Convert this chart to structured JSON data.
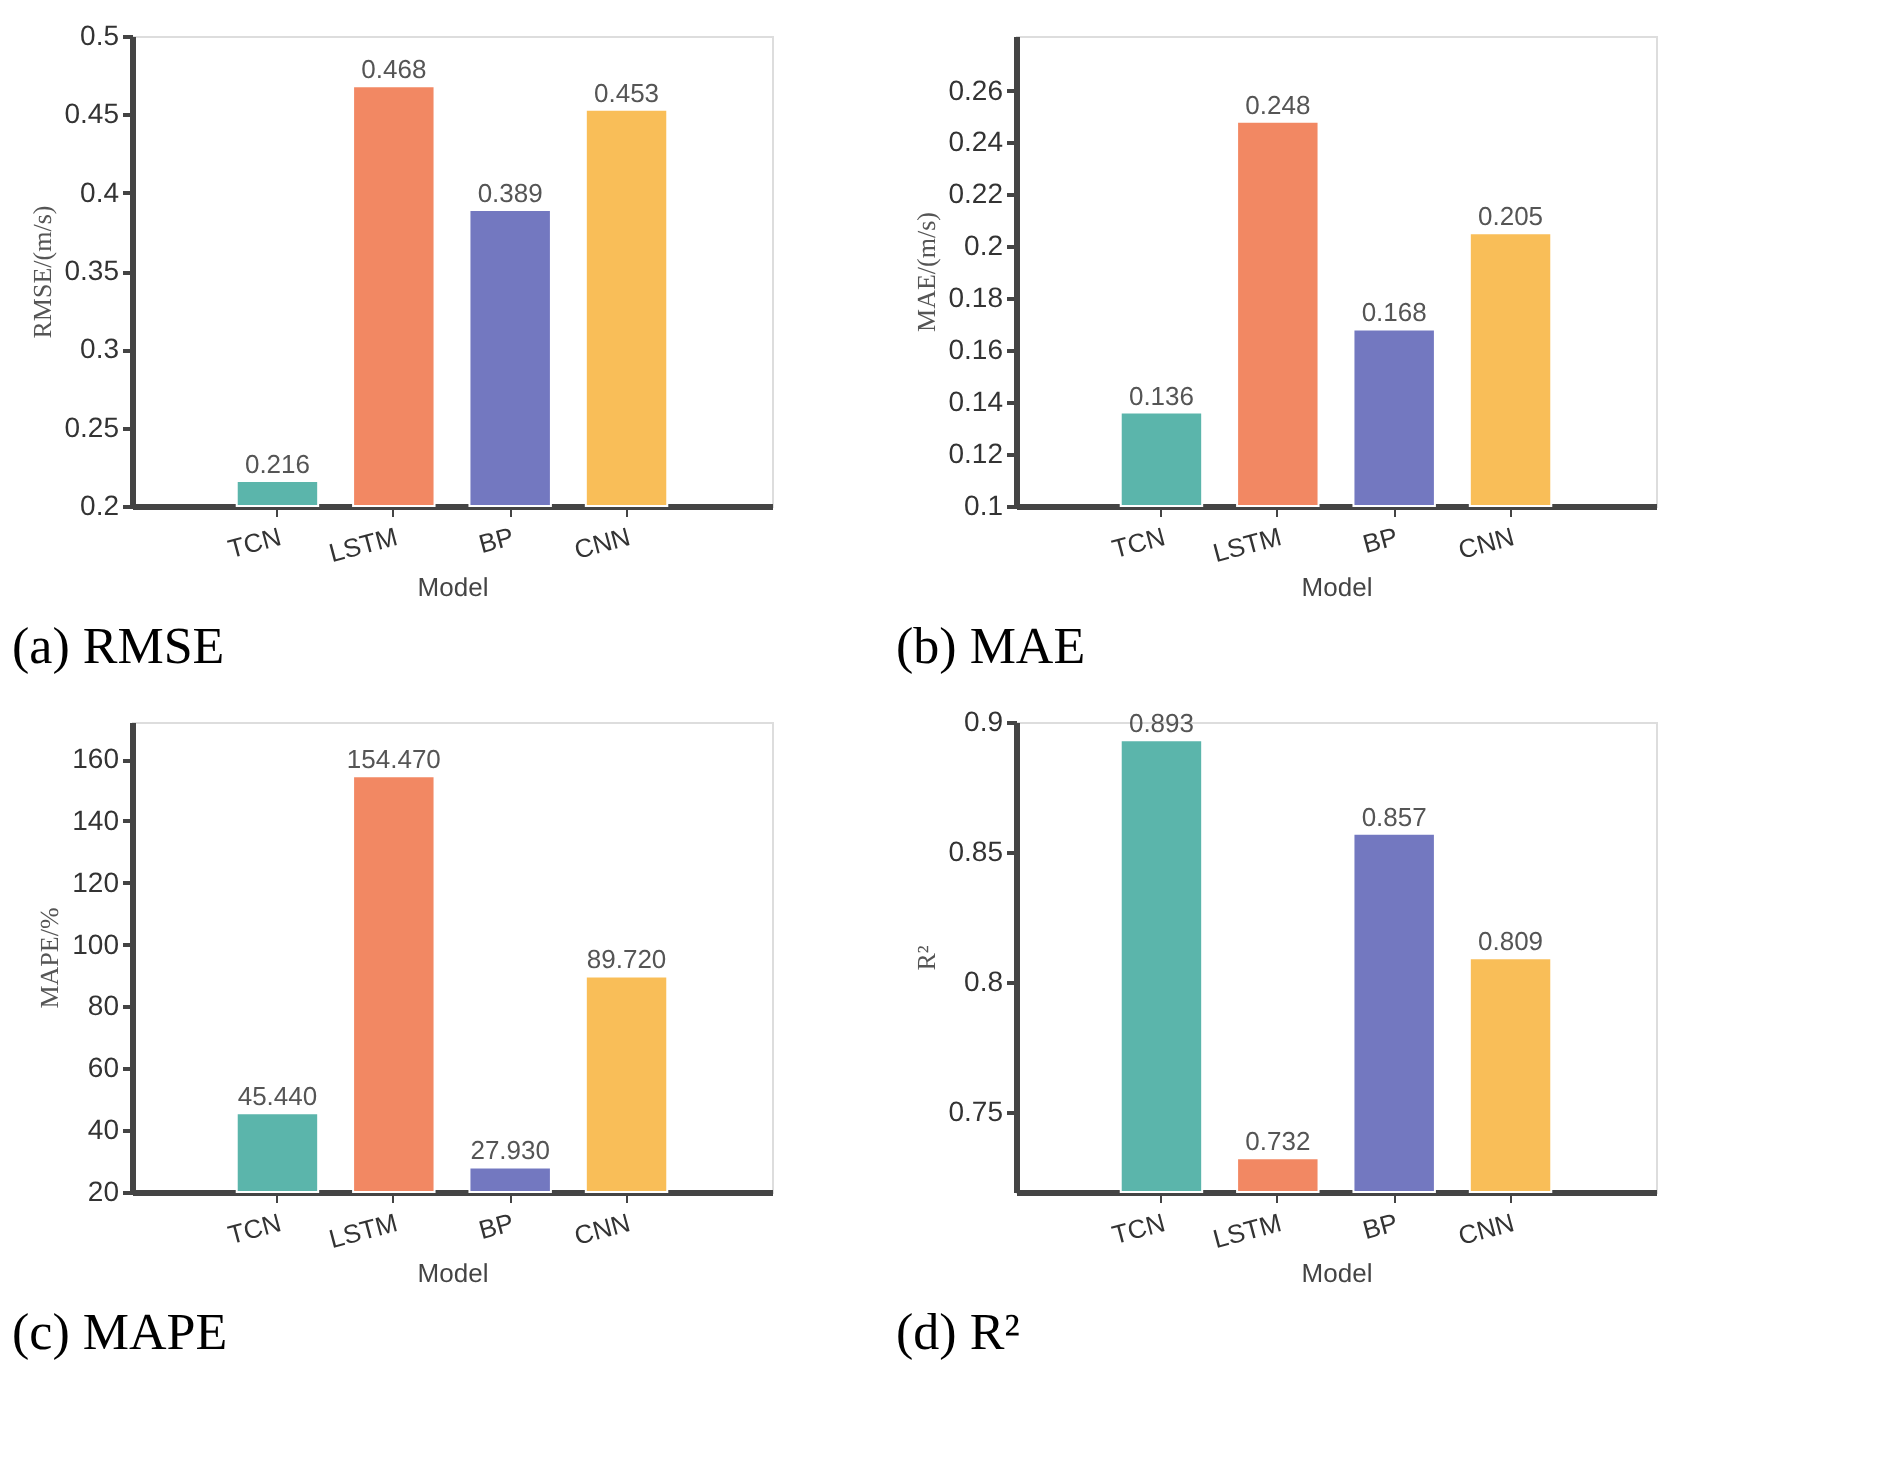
{
  "chart_data": [
    {
      "type": "bar",
      "title": "(a) RMSE",
      "xlabel": "Model",
      "ylabel": "RMSE/(m/s)",
      "categories": [
        "TCN",
        "LSTM",
        "BP",
        "CNN"
      ],
      "values": [
        0.216,
        0.468,
        0.389,
        0.453
      ],
      "colors": [
        "#5bb5ab",
        "#f28863",
        "#7378c0",
        "#f9be58"
      ],
      "ylim": [
        0.2,
        0.5
      ],
      "yticks": [
        0.2,
        0.25,
        0.3,
        0.35,
        0.4,
        0.45,
        0.5
      ],
      "data_labels": true,
      "grid": false
    },
    {
      "type": "bar",
      "title": "(b) MAE",
      "xlabel": "Model",
      "ylabel": "MAE/(m/s)",
      "categories": [
        "TCN",
        "LSTM",
        "BP",
        "CNN"
      ],
      "values": [
        0.136,
        0.248,
        0.168,
        0.205
      ],
      "colors": [
        "#5bb5ab",
        "#f28863",
        "#7378c0",
        "#f9be58"
      ],
      "ylim": [
        0.1,
        0.281
      ],
      "yticks": [
        0.1,
        0.12,
        0.14,
        0.16,
        0.18,
        0.2,
        0.22,
        0.24,
        0.26
      ],
      "data_labels": true,
      "grid": false
    },
    {
      "type": "bar",
      "title": "(c) MAPE",
      "xlabel": "Model",
      "ylabel": "MAPE/%",
      "categories": [
        "TCN",
        "LSTM",
        "BP",
        "CNN"
      ],
      "values": [
        45.44,
        154.47,
        27.93,
        89.72
      ],
      "value_labels": [
        "45.440",
        "154.470",
        "27.930",
        "89.720"
      ],
      "colors": [
        "#5bb5ab",
        "#f28863",
        "#7378c0",
        "#f9be58"
      ],
      "ylim": [
        20,
        172
      ],
      "yticks": [
        20,
        40,
        60,
        80,
        100,
        120,
        140,
        160
      ],
      "grid": false
    },
    {
      "type": "bar",
      "title": "(d) R²",
      "xlabel": "Model",
      "ylabel": "R²",
      "categories": [
        "TCN",
        "LSTM",
        "BP",
        "CNN"
      ],
      "values": [
        0.893,
        0.732,
        0.857,
        0.809
      ],
      "colors": [
        "#5bb5ab",
        "#f28863",
        "#7378c0",
        "#f9be58"
      ],
      "ylim": [
        0.719,
        0.9
      ],
      "yticks": [
        0.75,
        0.8,
        0.85,
        0.9
      ],
      "data_labels": true,
      "grid": false
    }
  ]
}
